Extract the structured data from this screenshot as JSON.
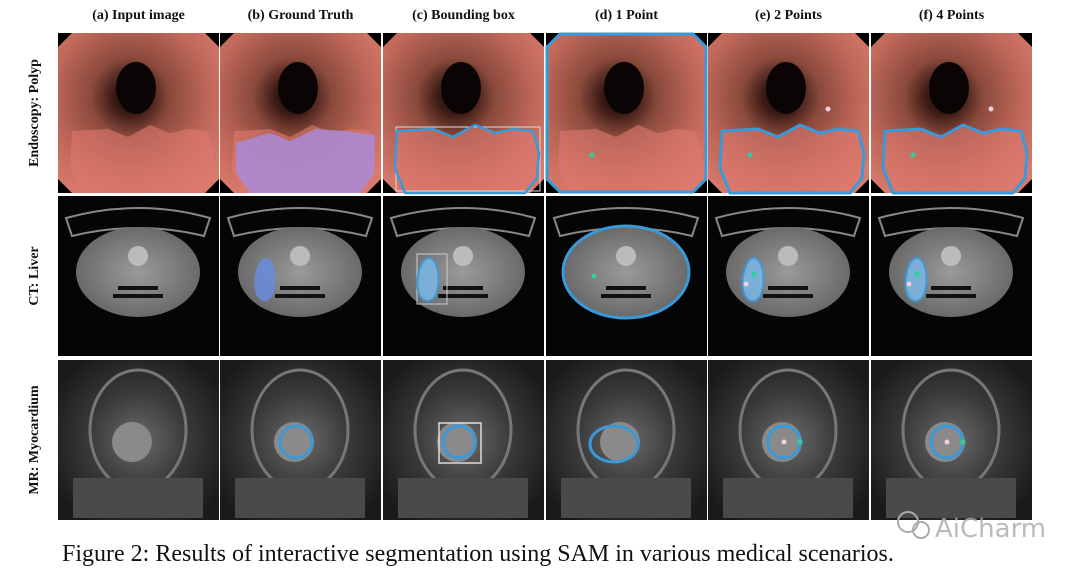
{
  "columns": [
    "(a) Input image",
    "(b) Ground Truth",
    "(c) Bounding box",
    "(d) 1 Point",
    "(e) 2 Points",
    "(f) 4 Points"
  ],
  "rows": [
    "Endoscopy: Polyp",
    "CT: Liver",
    "MR: Myocardium"
  ],
  "caption": "Figure 2: Results of interactive segmentation using SAM in various medical scenarios.",
  "watermark": "AiCharm"
}
